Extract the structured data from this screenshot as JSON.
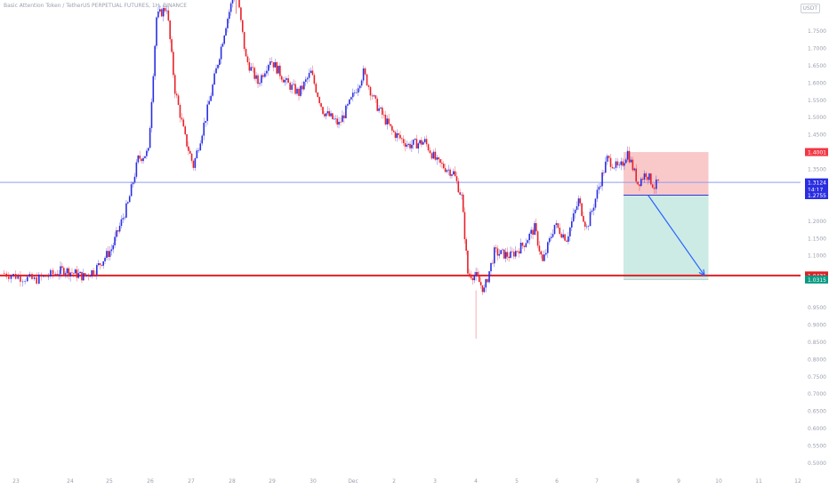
{
  "header": {
    "title": "Basic Attention Token / TetherUS PERPETUAL FUTURES, 1H, BINANCE",
    "currency_badge": "USDT"
  },
  "colors": {
    "up": "#2a2ee0",
    "down": "#e8202a",
    "support_line": "#e01f26",
    "current_line": "#8f9cf3",
    "stop_zone": "#f7b7b7",
    "target_zone": "#bfe6df",
    "arrow": "#2962ff"
  },
  "price_labels": {
    "stop": "1.4001",
    "current": "1.3124",
    "countdown": "14:17",
    "entry": "1.2755",
    "support": "1.0431",
    "target": "1.0315"
  },
  "chart_data": {
    "type": "candlestick",
    "title": "Basic Attention Token / TetherUS PERPETUAL FUTURES, 1H, BINANCE",
    "ylim": [
      0.5,
      1.85
    ],
    "y_ticks": [
      "1.7500",
      "1.7000",
      "1.6500",
      "1.6000",
      "1.5500",
      "1.5000",
      "1.4500",
      "1.3500",
      "1.2000",
      "1.1500",
      "1.1000",
      "0.9500",
      "0.9000",
      "0.8500",
      "0.8000",
      "0.7500",
      "0.7000",
      "0.6500",
      "0.6000",
      "0.5500",
      "0.5000"
    ],
    "x_ticks": [
      "23",
      "24",
      "25",
      "26",
      "27",
      "28",
      "29",
      "30",
      "Dec",
      "2",
      "3",
      "4",
      "5",
      "6",
      "7",
      "8",
      "9",
      "10",
      "11",
      "12"
    ],
    "price_path": [
      {
        "d": 0.0,
        "p": 1.05
      },
      {
        "d": 0.6,
        "p": 1.03
      },
      {
        "d": 1.2,
        "p": 1.06
      },
      {
        "d": 1.7,
        "p": 1.04
      },
      {
        "d": 2.0,
        "p": 1.06
      },
      {
        "d": 2.4,
        "p": 1.12
      },
      {
        "d": 2.8,
        "p": 1.25
      },
      {
        "d": 3.05,
        "p": 1.38
      },
      {
        "d": 3.3,
        "p": 1.4
      },
      {
        "d": 3.5,
        "p": 1.79
      },
      {
        "d": 3.75,
        "p": 1.82
      },
      {
        "d": 3.95,
        "p": 1.58
      },
      {
        "d": 4.2,
        "p": 1.44
      },
      {
        "d": 4.4,
        "p": 1.36
      },
      {
        "d": 4.7,
        "p": 1.5
      },
      {
        "d": 5.0,
        "p": 1.66
      },
      {
        "d": 5.2,
        "p": 1.77
      },
      {
        "d": 5.45,
        "p": 1.88
      },
      {
        "d": 5.7,
        "p": 1.67
      },
      {
        "d": 6.0,
        "p": 1.6
      },
      {
        "d": 6.3,
        "p": 1.67
      },
      {
        "d": 6.7,
        "p": 1.6
      },
      {
        "d": 7.0,
        "p": 1.57
      },
      {
        "d": 7.3,
        "p": 1.63
      },
      {
        "d": 7.6,
        "p": 1.52
      },
      {
        "d": 8.0,
        "p": 1.48
      },
      {
        "d": 8.3,
        "p": 1.55
      },
      {
        "d": 8.6,
        "p": 1.63
      },
      {
        "d": 8.9,
        "p": 1.54
      },
      {
        "d": 9.3,
        "p": 1.46
      },
      {
        "d": 9.7,
        "p": 1.42
      },
      {
        "d": 10.1,
        "p": 1.43
      },
      {
        "d": 10.4,
        "p": 1.37
      },
      {
        "d": 10.8,
        "p": 1.34
      },
      {
        "d": 11.0,
        "p": 1.27
      },
      {
        "d": 11.15,
        "p": 1.05
      },
      {
        "d": 11.35,
        "p": 1.04
      },
      {
        "d": 11.55,
        "p": 1.0
      },
      {
        "d": 11.8,
        "p": 1.11
      },
      {
        "d": 12.2,
        "p": 1.1
      },
      {
        "d": 12.5,
        "p": 1.13
      },
      {
        "d": 12.8,
        "p": 1.18
      },
      {
        "d": 13.0,
        "p": 1.08
      },
      {
        "d": 13.3,
        "p": 1.19
      },
      {
        "d": 13.6,
        "p": 1.15
      },
      {
        "d": 13.9,
        "p": 1.26
      },
      {
        "d": 14.1,
        "p": 1.18
      },
      {
        "d": 14.4,
        "p": 1.3
      },
      {
        "d": 14.6,
        "p": 1.38
      },
      {
        "d": 14.9,
        "p": 1.35
      },
      {
        "d": 15.1,
        "p": 1.4
      },
      {
        "d": 15.35,
        "p": 1.31
      },
      {
        "d": 15.55,
        "p": 1.34
      },
      {
        "d": 15.75,
        "p": 1.3
      },
      {
        "d": 15.85,
        "p": 1.3124
      }
    ],
    "wick_extremes": [
      {
        "d": 11.35,
        "low": 0.86
      },
      {
        "d": 5.45,
        "high": 1.9
      }
    ],
    "levels": [
      {
        "label": "support",
        "price": 1.0431
      },
      {
        "label": "current",
        "price": 1.3124
      }
    ],
    "position": {
      "side": "short",
      "start": 15.0,
      "end": 17.1,
      "stop": 1.4001,
      "entry": 1.2755,
      "target": 1.0315
    },
    "projection": {
      "from_d": 15.6,
      "from_p": 1.2755,
      "to_d": 17.0,
      "to_p": 1.0431
    }
  }
}
